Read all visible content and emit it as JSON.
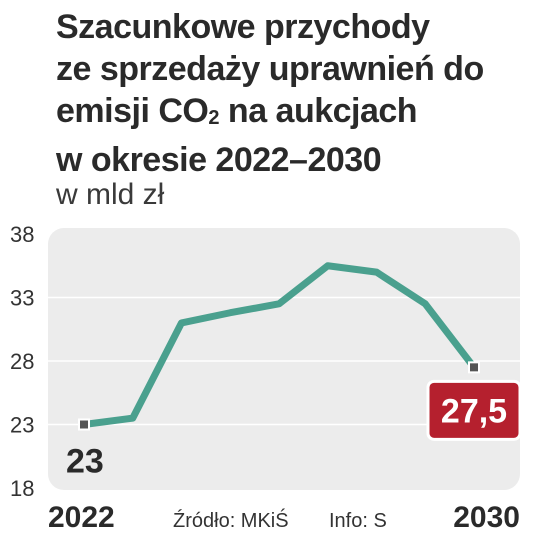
{
  "title_lines": [
    "Szacunkowe przychody",
    "ze sprzedaży uprawnień do",
    "emisji CO",
    "na aukcjach",
    "w okresie 2022–2030"
  ],
  "title_sub": "2",
  "subtitle": "w mld zł",
  "source": "Źródło: MKiŚ",
  "info": "Info: S",
  "colors": {
    "line": "#4aa08e",
    "highlight": "#b5202e",
    "panel": "#ececec",
    "marker": "#555555"
  },
  "chart_data": {
    "type": "line",
    "title": "Szacunkowe przychody ze sprzedaży uprawnień do emisji CO2 na aukcjach w okresie 2022–2030",
    "subtitle": "w mld zł",
    "x": [
      2022,
      2023,
      2024,
      2025,
      2026,
      2027,
      2028,
      2029,
      2030
    ],
    "values": [
      23,
      23.5,
      31,
      31.8,
      32.5,
      35.5,
      35,
      32.5,
      27.5
    ],
    "ylim": [
      18,
      38
    ],
    "yticks": [
      18,
      23,
      28,
      33,
      38
    ],
    "x_tick_labels": [
      "2022",
      "2030"
    ],
    "data_labels": {
      "start": "23",
      "end": "27,5"
    },
    "grid": true
  }
}
